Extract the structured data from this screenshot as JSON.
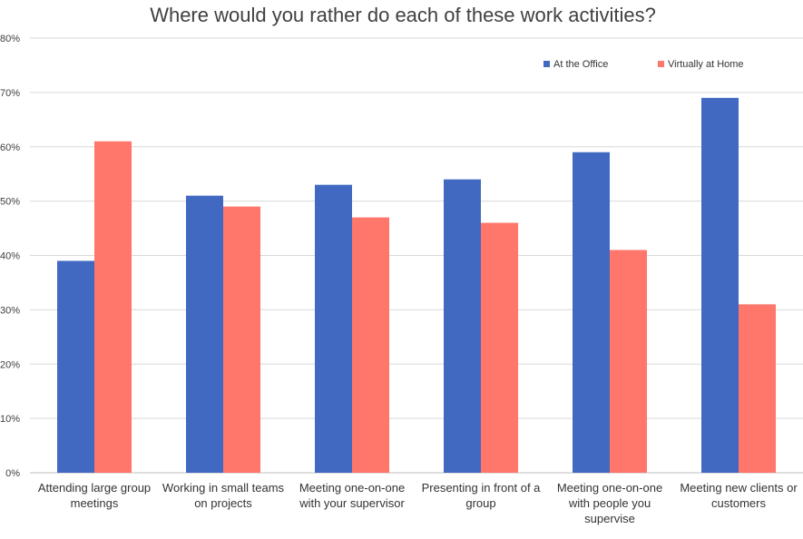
{
  "chart_data": {
    "type": "bar",
    "title": "Where would you rather do each of these work activities?",
    "categories": [
      [
        "Attending large group",
        "meetings"
      ],
      [
        "Working in small teams",
        "on projects"
      ],
      [
        "Meeting one-on-one",
        "with your supervisor"
      ],
      [
        "Presenting in front of a",
        "group"
      ],
      [
        "Meeting one-on-one",
        "with people you",
        "supervise"
      ],
      [
        "Meeting new clients or",
        "customers"
      ]
    ],
    "series": [
      {
        "name": "At the Office",
        "color": "#4169C1",
        "values": [
          39,
          51,
          53,
          54,
          59,
          69
        ]
      },
      {
        "name": "Virtually at Home",
        "color": "#FF766A",
        "values": [
          61,
          49,
          47,
          46,
          41,
          31
        ]
      }
    ],
    "ylim": [
      0,
      80
    ],
    "yticks": [
      "0%",
      "10%",
      "20%",
      "30%",
      "40%",
      "50%",
      "60%",
      "70%",
      "80%"
    ],
    "grid": true,
    "legend_position": "top-right"
  }
}
